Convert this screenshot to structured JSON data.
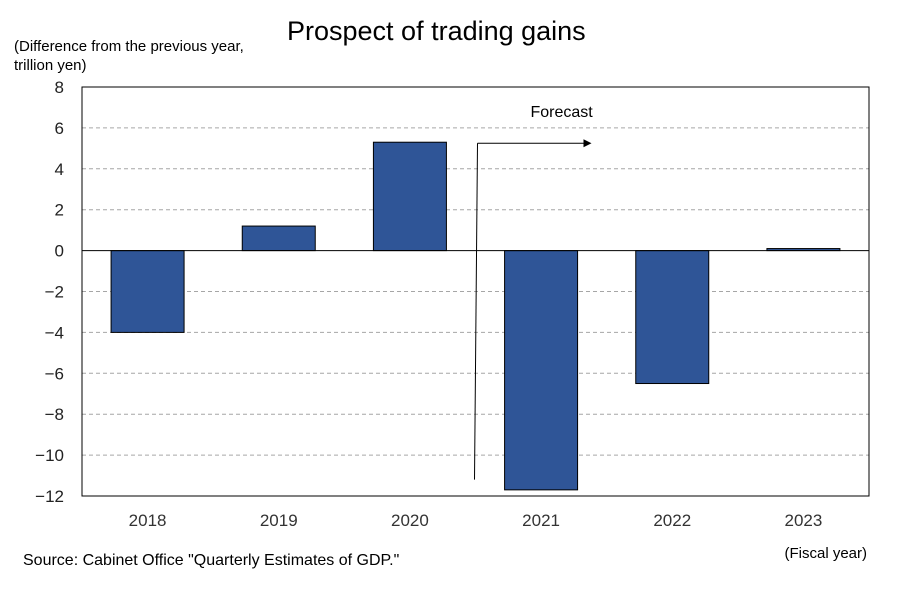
{
  "chart_data": {
    "type": "bar",
    "title": "Prospect of trading gains",
    "ylabel": "(Difference from the previous year, trillion yen)",
    "xlabel": "(Fiscal year)",
    "categories": [
      "2018",
      "2019",
      "2020",
      "2021",
      "2022",
      "2023"
    ],
    "values": [
      -4.0,
      1.2,
      5.3,
      -11.7,
      -6.5,
      0.1
    ],
    "ylim": [
      -12,
      8
    ],
    "yticks": [
      8,
      6,
      4,
      2,
      0,
      -2,
      -4,
      -6,
      -8,
      -10,
      -12
    ],
    "ytick_labels": [
      "8",
      "6",
      "4",
      "2",
      "0",
      "−2",
      "−4",
      "−6",
      "−8",
      "−10",
      "−12"
    ],
    "grid": true,
    "annotation": {
      "text": "Forecast",
      "starts_at": "2021"
    },
    "colors": {
      "bar": "#2f5597",
      "bar_edge": "#000000",
      "grid": "#a6a6a6"
    },
    "source": "Source: Cabinet Office \"Quarterly Estimates of GDP.\""
  }
}
